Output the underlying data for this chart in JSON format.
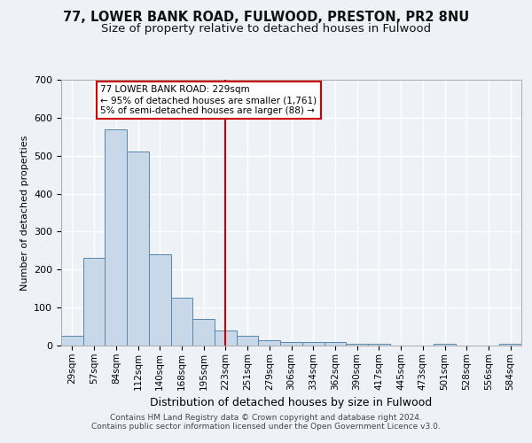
{
  "title_line1": "77, LOWER BANK ROAD, FULWOOD, PRESTON, PR2 8NU",
  "title_line2": "Size of property relative to detached houses in Fulwood",
  "xlabel": "Distribution of detached houses by size in Fulwood",
  "ylabel": "Number of detached properties",
  "footer_line1": "Contains HM Land Registry data © Crown copyright and database right 2024.",
  "footer_line2": "Contains public sector information licensed under the Open Government Licence v3.0.",
  "categories": [
    "29sqm",
    "57sqm",
    "84sqm",
    "112sqm",
    "140sqm",
    "168sqm",
    "195sqm",
    "223sqm",
    "251sqm",
    "279sqm",
    "306sqm",
    "334sqm",
    "362sqm",
    "390sqm",
    "417sqm",
    "445sqm",
    "473sqm",
    "501sqm",
    "528sqm",
    "556sqm",
    "584sqm"
  ],
  "values": [
    25,
    230,
    570,
    510,
    240,
    125,
    70,
    40,
    25,
    15,
    10,
    10,
    10,
    5,
    5,
    0,
    0,
    5,
    0,
    0,
    5
  ],
  "bar_color": "#c8d8e8",
  "bar_edge_color": "#5588aa",
  "vline_x": 7,
  "vline_color": "#cc0000",
  "annotation_text": "77 LOWER BANK ROAD: 229sqm\n← 95% of detached houses are smaller (1,761)\n5% of semi-detached houses are larger (88) →",
  "annotation_box_color": "#cc0000",
  "ylim": [
    0,
    700
  ],
  "yticks": [
    0,
    100,
    200,
    300,
    400,
    500,
    600,
    700
  ],
  "bg_color": "#eef2f7",
  "grid_color": "#ffffff",
  "title_fontsize": 10.5,
  "subtitle_fontsize": 9.5
}
